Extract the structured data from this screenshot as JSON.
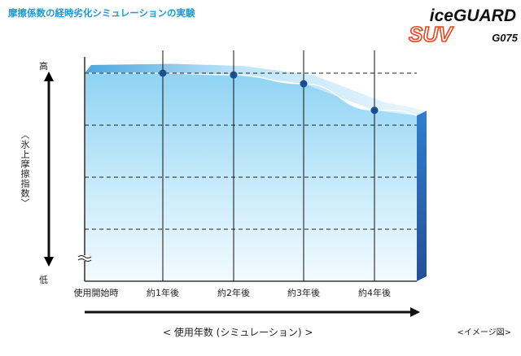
{
  "header": {
    "title": "摩擦係数の経時劣化シミュレーションの実験"
  },
  "brand": {
    "line1": "iceGUARD",
    "line2": "SUV",
    "model": "G075"
  },
  "chart_data": {
    "type": "area",
    "title": "摩擦係数の経時劣化シミュレーションの実験",
    "ylabel": "〈氷上摩擦指数〉",
    "y_high_label": "高",
    "y_low_label": "低",
    "xlabel": "< 使用年数 (シミュレーション) >",
    "note": "<イメージ図>",
    "categories": [
      "使用開始時",
      "約1年後",
      "約2年後",
      "約3年後",
      "約4年後"
    ],
    "x": [
      0,
      1,
      2,
      3,
      4
    ],
    "series": [
      {
        "values": [
          100,
          100,
          99,
          94,
          79
        ],
        "point_values": [
          null,
          100,
          99,
          94,
          79
        ]
      }
    ],
    "ylim": [
      0,
      100
    ],
    "grid": true,
    "colors": {
      "title": "#1d9ad2",
      "area_light": "#e8f5fc",
      "area_mid": "#8fd3f3",
      "area_dark": "#2e7fc9",
      "side_dark": "#2a5fa8",
      "point": "#1b4e8c",
      "axis": "#111111",
      "logo_red": "#e8451f"
    }
  }
}
